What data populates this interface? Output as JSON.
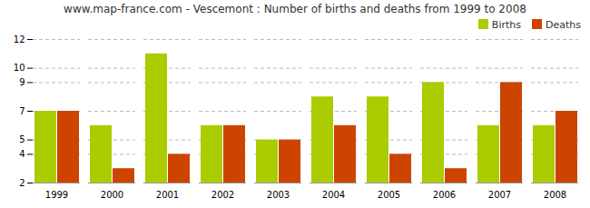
{
  "chart_data": {
    "type": "bar",
    "title": "www.map-france.com - Vescemont : Number of births and deaths from 1999 to 2008",
    "categories": [
      "1999",
      "2000",
      "2001",
      "2002",
      "2003",
      "2004",
      "2005",
      "2006",
      "2007",
      "2008"
    ],
    "series": [
      {
        "name": "Births",
        "color": "#aacc00",
        "values": [
          7,
          6,
          11,
          6,
          5,
          8,
          8,
          9,
          6,
          6
        ]
      },
      {
        "name": "Deaths",
        "color": "#cc4400",
        "values": [
          7,
          3,
          4,
          6,
          5,
          6,
          4,
          3,
          9,
          7
        ]
      }
    ],
    "ylim": [
      2,
      12
    ],
    "yticks": [
      2,
      4,
      5,
      7,
      9,
      10,
      12
    ],
    "grid": true,
    "legend": "upper right"
  }
}
